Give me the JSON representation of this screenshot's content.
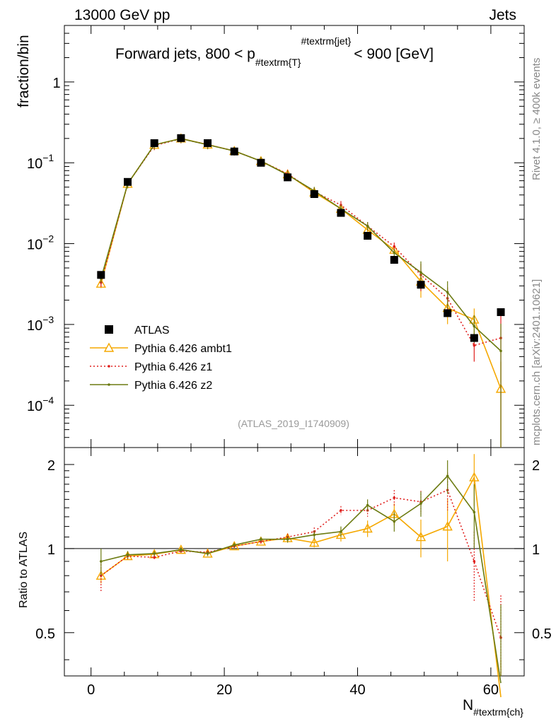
{
  "header": {
    "left": "13000 GeV pp",
    "right": "Jets"
  },
  "side_labels": {
    "rivet": "Rivet 4.1.0, ≥ 400k events",
    "mcplots": "mcplots.cern.ch [arXiv:2401.10621]"
  },
  "colors": {
    "ATLAS": "#000000",
    "ambt1": "#f5a800",
    "z1": "#e0201e",
    "z2": "#6b7a10"
  },
  "chart_data": {
    "type": "scatter",
    "title_parts": {
      "a": "Forward jets, 800 < p",
      "sub": "#textrm{T}",
      "sup": "#textrm{jet}",
      "b": "< 900 [GeV]"
    },
    "ylabel": "fraction/bin",
    "xlabel": "N",
    "xlabel_sub": "#textrm{ch}",
    "ratio_ylabel": "Ratio to ATLAS",
    "watermark": "(ATLAS_2019_I1740909)",
    "xlim": [
      -4,
      65
    ],
    "ylim": [
      3e-05,
      5
    ],
    "ratio_ylim": [
      0.35,
      2.3
    ],
    "x_ticks": [
      "0",
      "20",
      "40",
      "60"
    ],
    "y_ticks": [
      {
        "base": "1",
        "exp": ""
      },
      {
        "base": "10",
        "exp": "−1"
      },
      {
        "base": "10",
        "exp": "−2"
      },
      {
        "base": "10",
        "exp": "−3"
      },
      {
        "base": "10",
        "exp": "−4"
      }
    ],
    "ratio_ticks": [
      "2",
      "1",
      "0.5"
    ],
    "legend": [
      {
        "key": "ATLAS",
        "label": "ATLAS"
      },
      {
        "key": "ambt1",
        "label": "Pythia 6.426 ambt1"
      },
      {
        "key": "z1",
        "label": "Pythia 6.426 z1"
      },
      {
        "key": "z2",
        "label": "Pythia 6.426 z2"
      }
    ],
    "x": [
      1.5,
      5.5,
      9.5,
      13.5,
      17.5,
      21.5,
      25.5,
      29.5,
      33.5,
      37.5,
      41.5,
      45.5,
      49.5,
      53.5,
      57.5,
      61.5
    ],
    "data": {
      "name": "ATLAS",
      "values": [
        0.0041,
        0.058,
        0.175,
        0.202,
        0.175,
        0.138,
        0.1,
        0.066,
        0.041,
        0.024,
        0.0125,
        0.0063,
        0.0031,
        0.00138,
        0.00068,
        0.00142
      ]
    },
    "series": [
      {
        "key": "ambt1",
        "name": "Pythia 6.426 ambt1",
        "style": "triangle",
        "values": [
          0.0032,
          0.055,
          0.167,
          0.2,
          0.168,
          0.14,
          0.105,
          0.072,
          0.043,
          0.027,
          0.0148,
          0.0084,
          0.0034,
          0.0016,
          0.00115,
          0.00016
        ],
        "ratio": [
          0.8,
          0.94,
          0.955,
          0.99,
          0.96,
          1.02,
          1.06,
          1.09,
          1.05,
          1.12,
          1.18,
          1.33,
          1.1,
          1.2,
          1.8,
          0.1
        ],
        "ratio_err": [
          0.05,
          0.03,
          0.02,
          0.02,
          0.02,
          0.02,
          0.02,
          0.03,
          0.04,
          0.06,
          0.08,
          0.12,
          0.17,
          0.3,
          0.38,
          0.3
        ]
      },
      {
        "key": "z1",
        "name": "Pythia 6.426 z1",
        "style": "dotted",
        "values": [
          0.0033,
          0.055,
          0.163,
          0.198,
          0.168,
          0.14,
          0.105,
          0.073,
          0.044,
          0.03,
          0.0165,
          0.0092,
          0.0041,
          0.0021,
          0.00055,
          0.00068
        ],
        "ratio": [
          0.8,
          0.94,
          0.93,
          0.98,
          0.97,
          1.02,
          1.06,
          1.1,
          1.15,
          1.37,
          1.37,
          1.52,
          1.47,
          1.62,
          0.9,
          0.48
        ],
        "ratio_err": [
          0.1,
          0.03,
          0.02,
          0.02,
          0.02,
          0.02,
          0.02,
          0.03,
          0.04,
          0.05,
          0.07,
          0.1,
          0.14,
          0.25,
          0.25,
          0.2
        ]
      },
      {
        "key": "z2",
        "name": "Pythia 6.426 z2",
        "style": "line",
        "values": [
          0.0037,
          0.055,
          0.167,
          0.199,
          0.167,
          0.14,
          0.105,
          0.071,
          0.045,
          0.027,
          0.0165,
          0.0077,
          0.0044,
          0.0025,
          0.00095,
          0.00047
        ],
        "ratio": [
          0.9,
          0.95,
          0.96,
          0.99,
          0.96,
          1.03,
          1.08,
          1.08,
          1.12,
          1.15,
          1.43,
          1.25,
          1.45,
          1.82,
          1.35,
          0.33
        ],
        "ratio_err": [
          0.1,
          0.03,
          0.02,
          0.02,
          0.02,
          0.02,
          0.02,
          0.03,
          0.04,
          0.05,
          0.07,
          0.1,
          0.15,
          0.25,
          0.35,
          0.3
        ]
      }
    ]
  }
}
